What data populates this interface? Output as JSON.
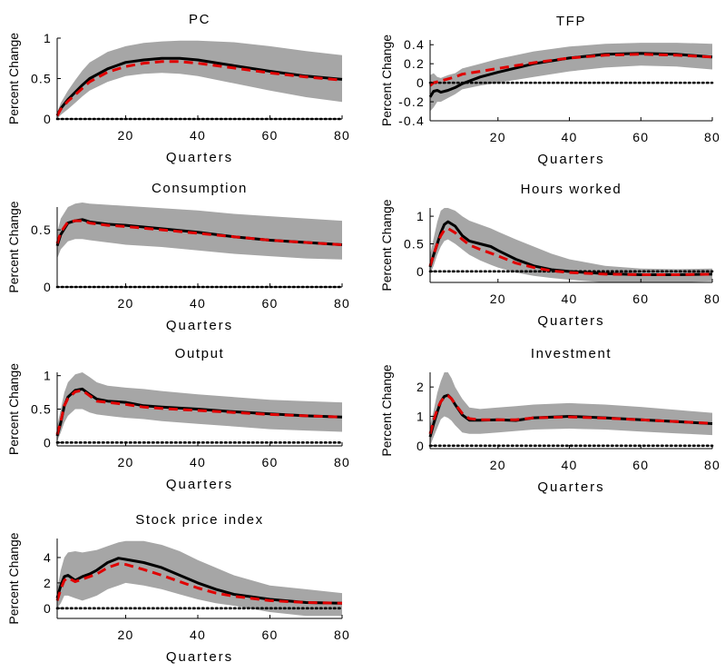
{
  "colors": {
    "band": "#a6a6a6",
    "line_a": "#000000",
    "line_b": "#e00000",
    "zero_line": "#000000"
  },
  "chart_data": [
    {
      "type": "line",
      "title": "PC",
      "xlabel": "Quarters",
      "ylabel": "Percent Change",
      "xlim": [
        1,
        80
      ],
      "ylim": [
        0,
        1
      ],
      "xticks": [
        20,
        40,
        60,
        80
      ],
      "yticks": [
        0,
        0.5,
        1
      ],
      "ytick_labels": [
        "0",
        "0.5",
        "1"
      ],
      "x": [
        1,
        2,
        4,
        6,
        8,
        10,
        15,
        20,
        25,
        30,
        35,
        40,
        50,
        60,
        70,
        80
      ],
      "band_upper": [
        0.08,
        0.2,
        0.35,
        0.48,
        0.6,
        0.7,
        0.83,
        0.9,
        0.94,
        0.96,
        0.97,
        0.97,
        0.95,
        0.9,
        0.84,
        0.79
      ],
      "band_lower": [
        0.0,
        0.05,
        0.12,
        0.2,
        0.28,
        0.35,
        0.46,
        0.53,
        0.56,
        0.57,
        0.56,
        0.53,
        0.44,
        0.35,
        0.27,
        0.21
      ],
      "series": [
        {
          "values": [
            0.04,
            0.13,
            0.24,
            0.33,
            0.42,
            0.5,
            0.62,
            0.7,
            0.73,
            0.75,
            0.75,
            0.73,
            0.66,
            0.59,
            0.53,
            0.49
          ]
        },
        {
          "values": [
            0.04,
            0.12,
            0.22,
            0.3,
            0.38,
            0.46,
            0.58,
            0.65,
            0.69,
            0.71,
            0.71,
            0.69,
            0.63,
            0.57,
            0.52,
            0.48
          ]
        }
      ]
    },
    {
      "type": "line",
      "title": "TFP",
      "xlabel": "Quarters",
      "ylabel": "Percent Change",
      "xlim": [
        1,
        80
      ],
      "ylim": [
        -0.4,
        0.45
      ],
      "xticks": [
        20,
        40,
        60,
        80
      ],
      "yticks": [
        -0.4,
        -0.2,
        0,
        0.2,
        0.4
      ],
      "ytick_labels": [
        "-0.4",
        "-0.2",
        "0",
        "0.2",
        "0.4"
      ],
      "x": [
        1,
        2,
        3,
        4,
        6,
        8,
        10,
        15,
        20,
        30,
        40,
        50,
        60,
        70,
        80
      ],
      "band_upper": [
        0.08,
        0.1,
        0.06,
        0.05,
        0.08,
        0.1,
        0.15,
        0.2,
        0.25,
        0.33,
        0.38,
        0.41,
        0.42,
        0.42,
        0.41
      ],
      "band_lower": [
        -0.3,
        -0.26,
        -0.2,
        -0.2,
        -0.16,
        -0.12,
        -0.07,
        -0.03,
        0.0,
        0.06,
        0.12,
        0.16,
        0.18,
        0.17,
        0.14
      ],
      "series": [
        {
          "values": [
            -0.15,
            -0.09,
            -0.08,
            -0.1,
            -0.08,
            -0.05,
            -0.01,
            0.06,
            0.11,
            0.2,
            0.26,
            0.3,
            0.31,
            0.3,
            0.27
          ]
        },
        {
          "values": [
            -0.03,
            0.0,
            0.01,
            0.02,
            0.04,
            0.06,
            0.09,
            0.12,
            0.15,
            0.21,
            0.26,
            0.29,
            0.3,
            0.29,
            0.27
          ]
        }
      ]
    },
    {
      "type": "line",
      "title": "Consumption",
      "xlabel": "Quarters",
      "ylabel": "Percent Change",
      "xlim": [
        1,
        80
      ],
      "ylim": [
        0,
        0.7
      ],
      "xticks": [
        20,
        40,
        60,
        80
      ],
      "yticks": [
        0,
        0.5
      ],
      "ytick_labels": [
        "0",
        "0.5"
      ],
      "x": [
        1,
        2,
        4,
        6,
        8,
        10,
        15,
        20,
        30,
        40,
        50,
        60,
        70,
        80
      ],
      "band_upper": [
        0.48,
        0.6,
        0.7,
        0.73,
        0.74,
        0.73,
        0.72,
        0.71,
        0.69,
        0.67,
        0.64,
        0.62,
        0.6,
        0.58
      ],
      "band_lower": [
        0.25,
        0.33,
        0.4,
        0.42,
        0.42,
        0.41,
        0.39,
        0.37,
        0.35,
        0.32,
        0.29,
        0.27,
        0.25,
        0.24
      ],
      "series": [
        {
          "values": [
            0.36,
            0.46,
            0.56,
            0.58,
            0.59,
            0.57,
            0.55,
            0.54,
            0.51,
            0.48,
            0.44,
            0.41,
            0.39,
            0.37
          ]
        },
        {
          "values": [
            0.38,
            0.48,
            0.57,
            0.58,
            0.58,
            0.56,
            0.54,
            0.53,
            0.5,
            0.47,
            0.44,
            0.41,
            0.39,
            0.37
          ]
        }
      ]
    },
    {
      "type": "line",
      "title": "Hours worked",
      "xlabel": "Quarters",
      "ylabel": "Percent Change",
      "xlim": [
        1,
        80
      ],
      "ylim": [
        -0.2,
        1.15
      ],
      "xticks": [
        20,
        40,
        60,
        80
      ],
      "yticks": [
        0,
        0.5,
        1
      ],
      "ytick_labels": [
        "0",
        "0.5",
        "1"
      ],
      "x": [
        1,
        2,
        3,
        4,
        5,
        6,
        8,
        10,
        12,
        15,
        18,
        20,
        25,
        30,
        35,
        40,
        50,
        60,
        70,
        80
      ],
      "band_upper": [
        0.3,
        0.6,
        0.9,
        1.1,
        1.15,
        1.15,
        1.1,
        1.0,
        0.92,
        0.85,
        0.78,
        0.72,
        0.58,
        0.45,
        0.32,
        0.22,
        0.1,
        0.05,
        0.04,
        0.05
      ],
      "band_lower": [
        -0.05,
        0.1,
        0.3,
        0.45,
        0.55,
        0.58,
        0.5,
        0.4,
        0.3,
        0.2,
        0.12,
        0.07,
        -0.02,
        -0.08,
        -0.12,
        -0.15,
        -0.2,
        -0.2,
        -0.2,
        -0.18
      ],
      "series": [
        {
          "values": [
            0.08,
            0.3,
            0.5,
            0.7,
            0.85,
            0.9,
            0.82,
            0.65,
            0.55,
            0.5,
            0.45,
            0.38,
            0.22,
            0.1,
            0.03,
            0.0,
            -0.04,
            -0.06,
            -0.06,
            -0.05
          ]
        },
        {
          "values": [
            0.1,
            0.3,
            0.5,
            0.65,
            0.75,
            0.78,
            0.7,
            0.58,
            0.48,
            0.4,
            0.33,
            0.28,
            0.15,
            0.07,
            0.01,
            -0.02,
            -0.05,
            -0.06,
            -0.06,
            -0.05
          ]
        }
      ]
    },
    {
      "type": "line",
      "title": "Output",
      "xlabel": "Quarters",
      "ylabel": "Percent Change",
      "xlim": [
        1,
        80
      ],
      "ylim": [
        -0.05,
        1.05
      ],
      "xticks": [
        20,
        40,
        60,
        80
      ],
      "yticks": [
        0,
        0.5,
        1
      ],
      "ytick_labels": [
        "0",
        "0.5",
        "1"
      ],
      "x": [
        1,
        2,
        3,
        4,
        6,
        8,
        10,
        12,
        15,
        20,
        25,
        30,
        40,
        50,
        60,
        70,
        80
      ],
      "band_upper": [
        0.25,
        0.5,
        0.75,
        0.9,
        1.02,
        1.05,
        0.98,
        0.9,
        0.85,
        0.82,
        0.8,
        0.77,
        0.72,
        0.68,
        0.64,
        0.62,
        0.6
      ],
      "band_lower": [
        0.02,
        0.15,
        0.3,
        0.4,
        0.5,
        0.5,
        0.45,
        0.42,
        0.4,
        0.37,
        0.35,
        0.32,
        0.28,
        0.24,
        0.2,
        0.18,
        0.16
      ],
      "series": [
        {
          "values": [
            0.1,
            0.3,
            0.55,
            0.68,
            0.78,
            0.8,
            0.72,
            0.65,
            0.62,
            0.6,
            0.55,
            0.53,
            0.5,
            0.46,
            0.43,
            0.4,
            0.38
          ]
        },
        {
          "values": [
            0.12,
            0.32,
            0.55,
            0.66,
            0.76,
            0.78,
            0.7,
            0.62,
            0.6,
            0.57,
            0.53,
            0.51,
            0.48,
            0.45,
            0.42,
            0.4,
            0.38
          ]
        }
      ]
    },
    {
      "type": "line",
      "title": "Investment",
      "xlabel": "Quarters",
      "ylabel": "Percent Change",
      "xlim": [
        1,
        80
      ],
      "ylim": [
        -0.1,
        2.5
      ],
      "xticks": [
        20,
        40,
        60,
        80
      ],
      "yticks": [
        0,
        1,
        2
      ],
      "ytick_labels": [
        "0",
        "1",
        "2"
      ],
      "x": [
        1,
        2,
        3,
        4,
        5,
        6,
        7,
        8,
        10,
        12,
        15,
        20,
        25,
        30,
        40,
        50,
        60,
        70,
        80
      ],
      "band_upper": [
        0.7,
        1.2,
        1.8,
        2.2,
        2.5,
        2.5,
        2.3,
        2.0,
        1.6,
        1.3,
        1.25,
        1.3,
        1.35,
        1.4,
        1.45,
        1.4,
        1.32,
        1.22,
        1.12
      ],
      "band_lower": [
        0.0,
        0.3,
        0.6,
        0.9,
        1.0,
        0.95,
        0.85,
        0.7,
        0.45,
        0.4,
        0.4,
        0.45,
        0.5,
        0.55,
        0.58,
        0.55,
        0.48,
        0.42,
        0.36
      ],
      "series": [
        {
          "values": [
            0.3,
            0.75,
            1.15,
            1.5,
            1.68,
            1.72,
            1.6,
            1.4,
            1.05,
            0.87,
            0.87,
            0.88,
            0.86,
            0.95,
            1.0,
            0.95,
            0.88,
            0.82,
            0.75
          ]
        },
        {
          "values": [
            0.4,
            0.85,
            1.25,
            1.5,
            1.65,
            1.7,
            1.6,
            1.42,
            1.1,
            0.92,
            0.88,
            0.88,
            0.88,
            0.95,
            0.98,
            0.94,
            0.88,
            0.82,
            0.76
          ]
        }
      ]
    },
    {
      "type": "line",
      "title": "Stock price index",
      "xlabel": "Quarters",
      "ylabel": "Percent Change",
      "xlim": [
        1,
        80
      ],
      "ylim": [
        -0.8,
        5.5
      ],
      "xticks": [
        20,
        40,
        60,
        80
      ],
      "yticks": [
        0,
        2,
        4
      ],
      "ytick_labels": [
        "0",
        "2",
        "4"
      ],
      "x": [
        1,
        2,
        3,
        4,
        6,
        8,
        10,
        12,
        15,
        18,
        20,
        25,
        30,
        35,
        40,
        45,
        50,
        60,
        70,
        80
      ],
      "band_upper": [
        1.5,
        3.0,
        4.0,
        4.4,
        4.5,
        4.4,
        4.5,
        4.6,
        4.9,
        5.2,
        5.3,
        5.3,
        5.0,
        4.5,
        3.8,
        3.2,
        2.6,
        1.8,
        1.5,
        1.2
      ],
      "band_lower": [
        0.0,
        0.4,
        1.0,
        1.0,
        0.8,
        0.6,
        0.8,
        1.0,
        1.5,
        1.8,
        2.0,
        1.8,
        1.5,
        1.1,
        0.7,
        0.4,
        0.2,
        -0.3,
        -0.6,
        -0.6
      ],
      "series": [
        {
          "values": [
            0.8,
            1.8,
            2.5,
            2.6,
            2.2,
            2.5,
            2.7,
            3.0,
            3.6,
            3.95,
            3.85,
            3.6,
            3.2,
            2.6,
            2.0,
            1.5,
            1.1,
            0.7,
            0.45,
            0.4
          ]
        },
        {
          "values": [
            0.6,
            1.5,
            2.2,
            2.4,
            2.1,
            2.3,
            2.5,
            2.7,
            3.2,
            3.5,
            3.45,
            3.05,
            2.6,
            2.1,
            1.6,
            1.2,
            0.95,
            0.6,
            0.45,
            0.4
          ]
        }
      ]
    }
  ]
}
